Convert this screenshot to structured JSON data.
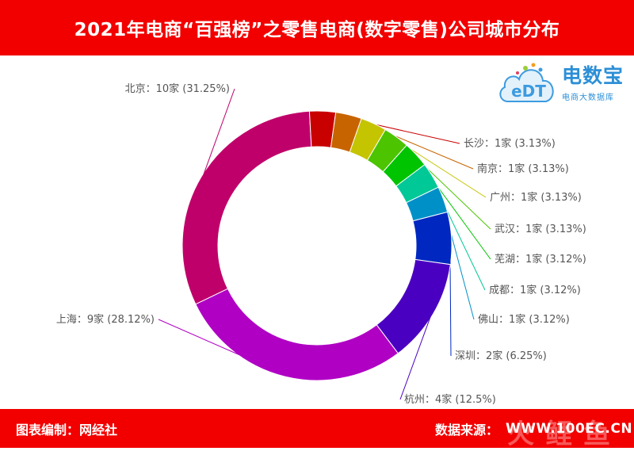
{
  "header": {
    "title": "2021年电商“百强榜”之零售电商(数字零售)公司城市分布"
  },
  "footer": {
    "left": "图表编制：网经社",
    "right": "数据来源：",
    "url": "WWW.100EC.CN",
    "watermark": [
      "火",
      "鲤",
      "鱼"
    ]
  },
  "logo": {
    "brand": "电数宝",
    "sub": "电商大数据库",
    "badge": "eDT"
  },
  "chart_data": {
    "type": "pie",
    "donut": true,
    "title": "",
    "unit": "家",
    "labels": [
      "北京",
      "长沙",
      "南京",
      "广州",
      "武汉",
      "芜湖",
      "成都",
      "佛山",
      "深圳",
      "杭州",
      "上海"
    ],
    "values": [
      10,
      1,
      1,
      1,
      1,
      1,
      1,
      1,
      2,
      4,
      9
    ],
    "percent_labels": [
      "31.25%",
      "3.13%",
      "3.13%",
      "3.13%",
      "3.13%",
      "3.12%",
      "3.12%",
      "3.12%",
      "6.25%",
      "12.5%",
      "28.12%"
    ],
    "colors": [
      "#c0006a",
      "#c80000",
      "#c86400",
      "#c4c400",
      "#4cc400",
      "#00c400",
      "#00c896",
      "#0090c8",
      "#0028c0",
      "#4a00c0",
      "#b000c4"
    ],
    "legend": "none"
  }
}
